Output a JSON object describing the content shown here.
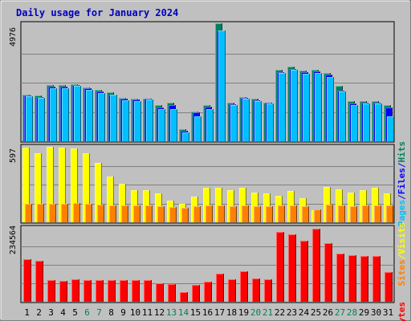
{
  "colors": {
    "background": "#c0c0c0",
    "plot_bg": "#c0c0c0",
    "title": "#0000c0",
    "hits": "#00805c",
    "files": "#0000ff",
    "pages": "#00c0ff",
    "visits": "#ffff00",
    "sites": "#ff8000",
    "kbytes": "#ff0000",
    "weekend_label": "#00805c",
    "weekday_label": "#000000"
  },
  "chart_data": {
    "type": "bar",
    "title": "Daily usage for January 2024",
    "days": [
      "1",
      "2",
      "3",
      "4",
      "5",
      "6",
      "7",
      "8",
      "9",
      "10",
      "11",
      "12",
      "13",
      "14",
      "15",
      "16",
      "17",
      "18",
      "19",
      "20",
      "21",
      "22",
      "23",
      "24",
      "25",
      "26",
      "27",
      "28",
      "29",
      "30",
      "31"
    ],
    "weekend_days": [
      "6",
      "7",
      "13",
      "14",
      "20",
      "21",
      "27",
      "28"
    ],
    "panels": [
      {
        "id": "top",
        "ymax_label": "4976",
        "ymax": 4976,
        "legend": [
          {
            "text": "Hits",
            "color_key": "hits"
          },
          {
            "text": "/",
            "color_key": "files"
          },
          {
            "text": "Files",
            "color_key": "files"
          },
          {
            "text": "/",
            "color_key": "files"
          },
          {
            "text": "Pages",
            "color_key": "pages"
          }
        ],
        "series": [
          {
            "name": "Hits",
            "color_key": "hits",
            "values": [
              1990,
              1950,
              2380,
              2380,
              2430,
              2280,
              2180,
              2080,
              1850,
              1820,
              1820,
              1520,
              1650,
              520,
              1250,
              1530,
              5000,
              1650,
              1870,
              1790,
              1650,
              3040,
              3180,
              2990,
              3040,
              2890,
              2350,
              1690,
              1690,
              1690,
              1530
            ]
          },
          {
            "name": "Files",
            "color_key": "files",
            "values": [
              1930,
              1880,
              2310,
              2310,
              2390,
              2240,
              2100,
              1990,
              1790,
              1770,
              1790,
              1440,
              1540,
              450,
              1210,
              1470,
              4700,
              1580,
              1830,
              1730,
              1620,
              2940,
              3070,
              2920,
              2950,
              2820,
              2160,
              1600,
              1640,
              1640,
              1430
            ]
          },
          {
            "name": "Pages",
            "color_key": "pages",
            "values": [
              1900,
              1850,
              2260,
              2260,
              2340,
              2190,
              2050,
              1960,
              1740,
              1720,
              1760,
              1350,
              1350,
              390,
              1070,
              1380,
              4700,
              1540,
              1800,
              1700,
              1600,
              2900,
              3040,
              2850,
              2880,
              2720,
              2120,
              1540,
              1590,
              1590,
              1040
            ]
          }
        ]
      },
      {
        "id": "middle",
        "ymax_label": "597",
        "ymax": 597,
        "legend": [
          {
            "text": "Visits",
            "color_key": "visits"
          },
          {
            "text": "/",
            "color_key": "visits"
          },
          {
            "text": "Sites",
            "color_key": "sites"
          }
        ],
        "series": [
          {
            "name": "Visits",
            "color_key": "visits",
            "values": [
              590,
              545,
              597,
              589,
              584,
              545,
              471,
              365,
              306,
              257,
              252,
              228,
              170,
              145,
              204,
              276,
              270,
              257,
              276,
              238,
              231,
              211,
              250,
              192,
              96,
              282,
              263,
              237,
              255,
              276,
              228
            ]
          },
          {
            "name": "Sites",
            "color_key": "sites",
            "values": [
              145,
              145,
              145,
              145,
              150,
              145,
              140,
              135,
              135,
              135,
              135,
              130,
              120,
              115,
              125,
              135,
              135,
              130,
              135,
              130,
              130,
              135,
              135,
              125,
              100,
              140,
              135,
              130,
              135,
              135,
              135
            ]
          }
        ]
      },
      {
        "id": "bottom",
        "ymax_label": "234564",
        "ymax": 234564,
        "legend": [
          {
            "text": "KBytes",
            "color_key": "kbytes"
          }
        ],
        "series": [
          {
            "name": "KBytes",
            "color_key": "kbytes",
            "values": [
              135000,
              130000,
              69000,
              66000,
              71000,
              70000,
              68000,
              69000,
              70000,
              70000,
              69000,
              59000,
              56000,
              30000,
              54000,
              63000,
              88000,
              71000,
              96000,
              74000,
              71000,
              221000,
              215000,
              193000,
              231000,
              185000,
              154000,
              148000,
              146000,
              146000,
              95000
            ]
          }
        ]
      }
    ]
  }
}
